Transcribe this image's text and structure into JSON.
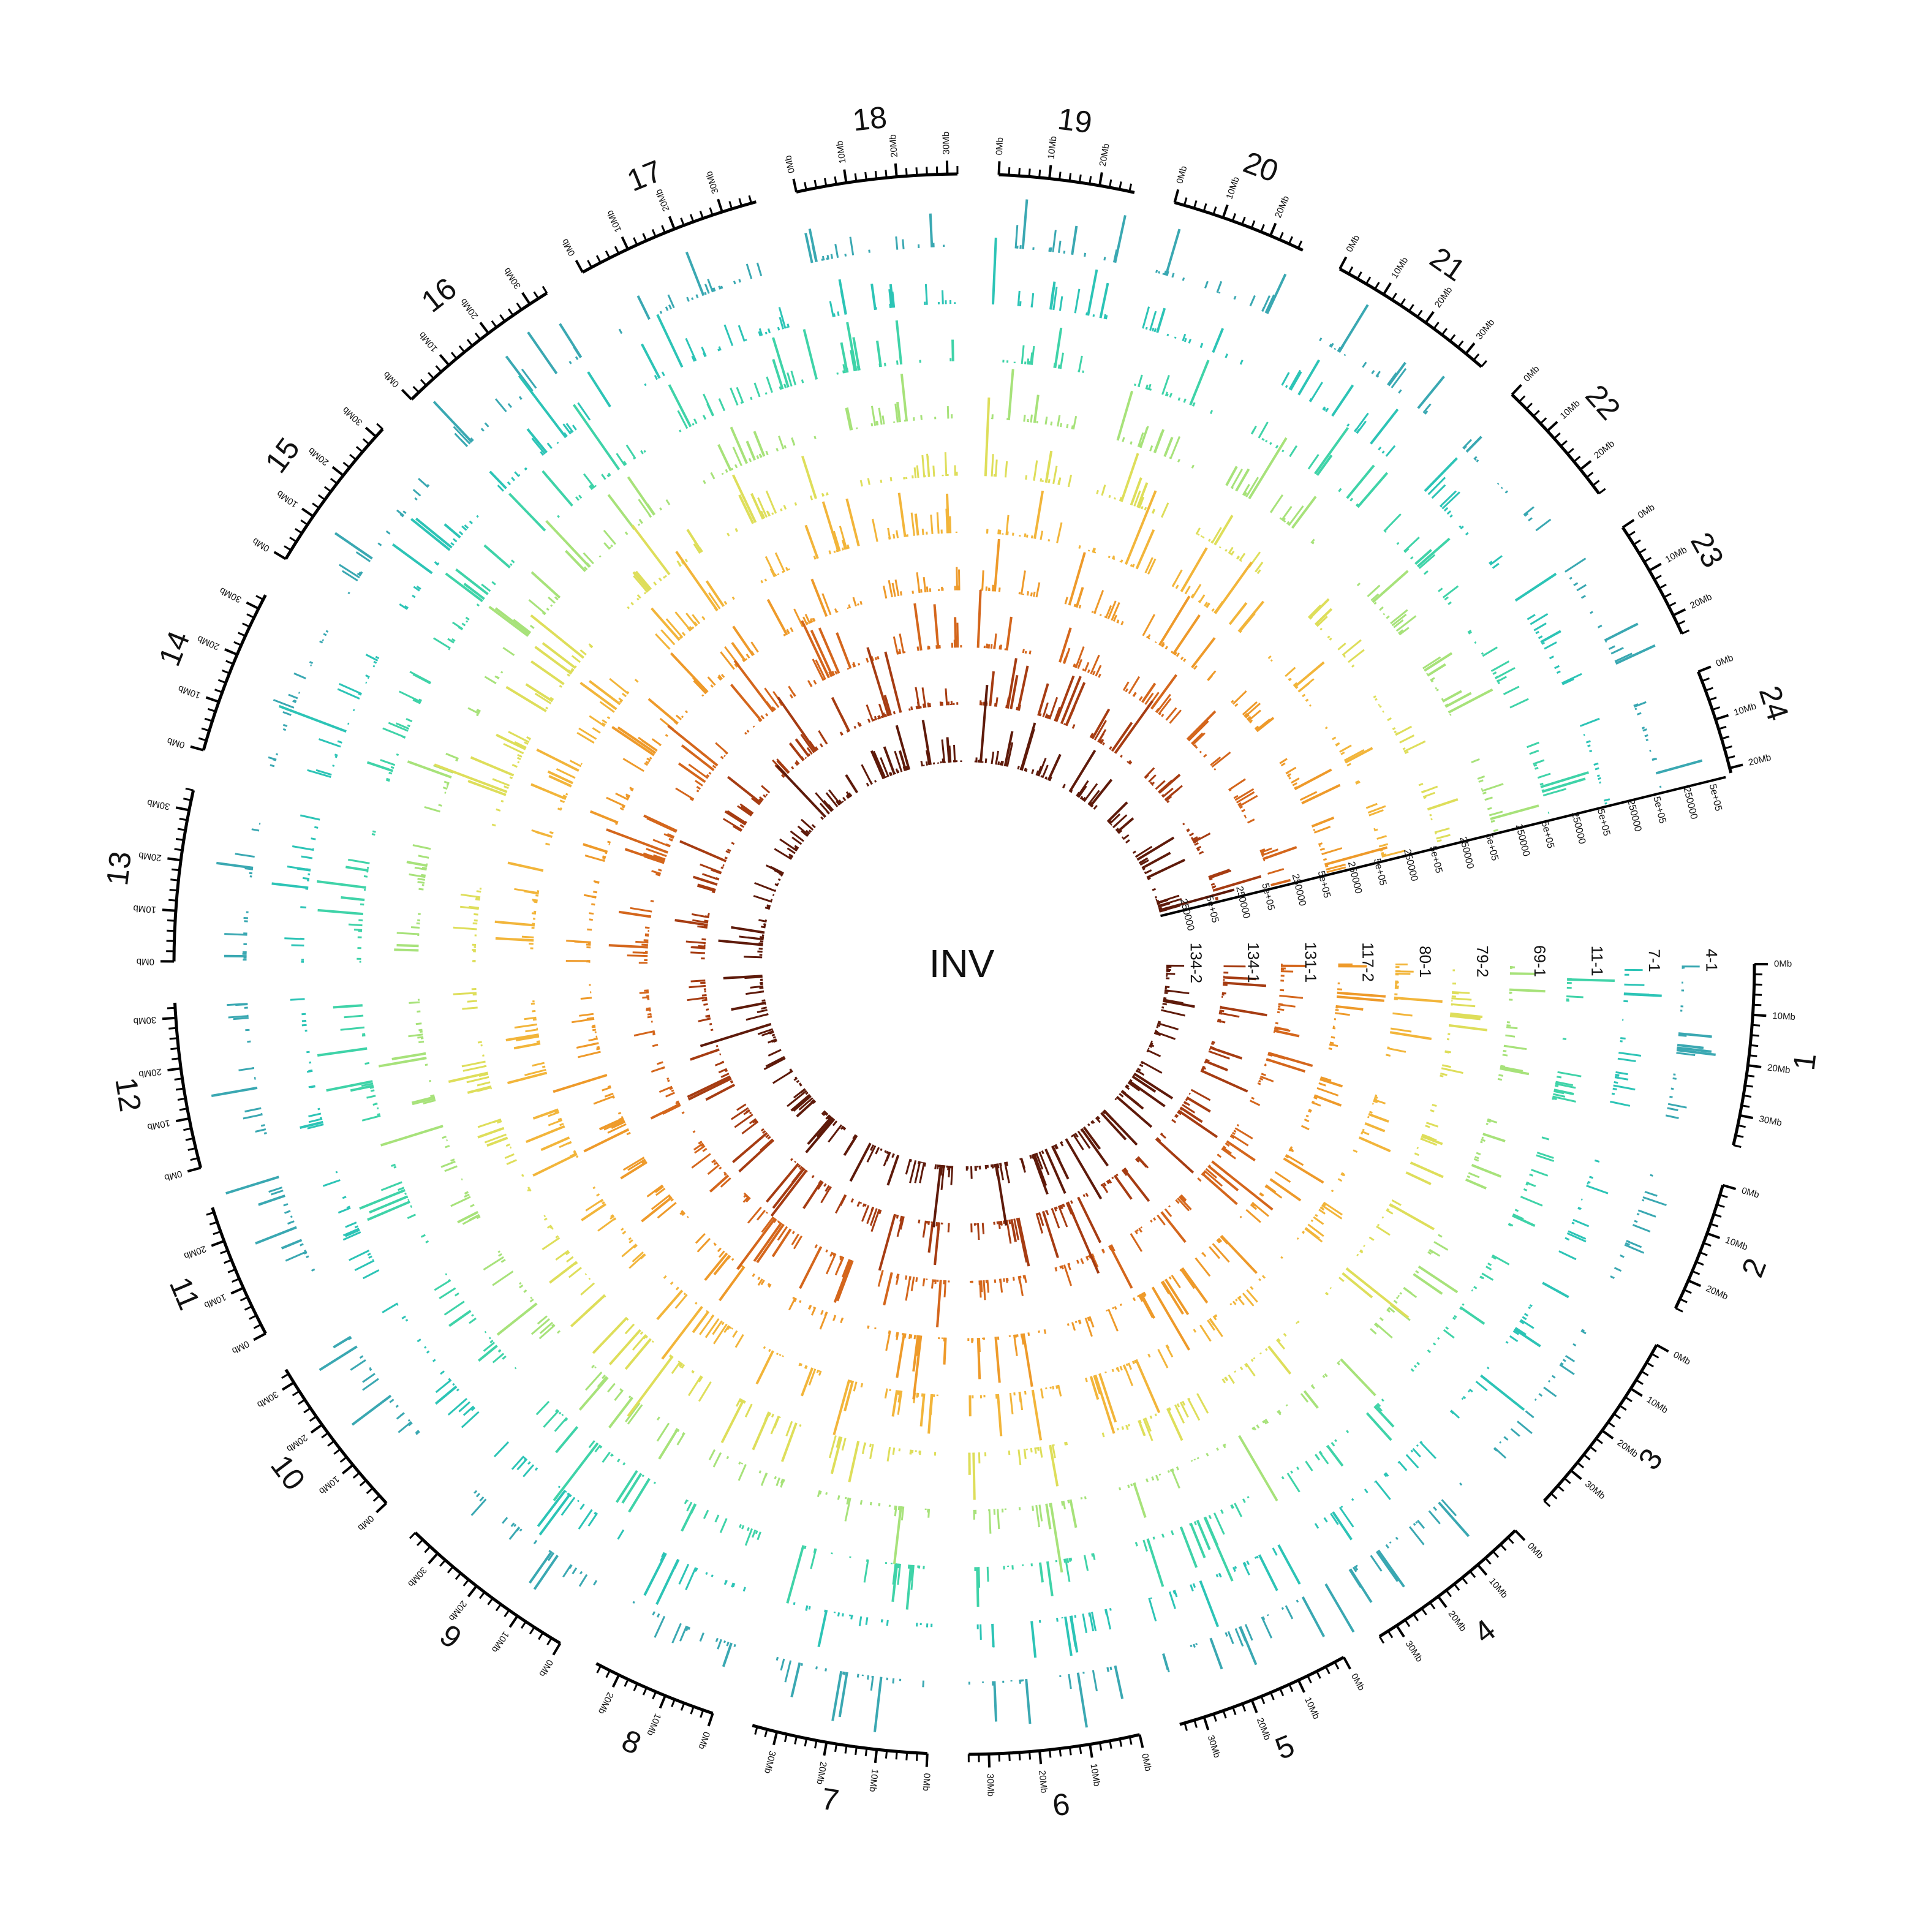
{
  "chart_data": {
    "type": "circos",
    "title": "INV",
    "chromosomes": [
      {
        "name": "1",
        "length_mb": 36,
        "tick_labels": [
          "0Mb",
          "10Mb",
          "20Mb",
          "30Mb"
        ]
      },
      {
        "name": "2",
        "length_mb": 26,
        "tick_labels": [
          "0Mb",
          "10Mb",
          "20Mb"
        ]
      },
      {
        "name": "3",
        "length_mb": 38,
        "tick_labels": [
          "0Mb",
          "10Mb",
          "20Mb",
          "30Mb"
        ]
      },
      {
        "name": "4",
        "length_mb": 34,
        "tick_labels": [
          "0Mb",
          "10Mb",
          "20Mb",
          "30Mb"
        ]
      },
      {
        "name": "5",
        "length_mb": 35,
        "tick_labels": [
          "0Mb",
          "10Mb",
          "20Mb",
          "30Mb"
        ]
      },
      {
        "name": "6",
        "length_mb": 34,
        "tick_labels": [
          "0Mb",
          "10Mb",
          "20Mb",
          "30Mb"
        ]
      },
      {
        "name": "7",
        "length_mb": 35,
        "tick_labels": [
          "0Mb",
          "10Mb",
          "20Mb",
          "30Mb"
        ]
      },
      {
        "name": "8",
        "length_mb": 25,
        "tick_labels": [
          "0Mb",
          "10Mb",
          "20Mb"
        ]
      },
      {
        "name": "9",
        "length_mb": 36,
        "tick_labels": [
          "0Mb",
          "10Mb",
          "20Mb",
          "30Mb"
        ]
      },
      {
        "name": "10",
        "length_mb": 33,
        "tick_labels": [
          "0Mb",
          "10Mb",
          "20Mb",
          "30Mb"
        ]
      },
      {
        "name": "11",
        "length_mb": 27,
        "tick_labels": [
          "0Mb",
          "10Mb",
          "20Mb"
        ]
      },
      {
        "name": "12",
        "length_mb": 33,
        "tick_labels": [
          "0Mb",
          "10Mb",
          "20Mb",
          "30Mb"
        ]
      },
      {
        "name": "13",
        "length_mb": 34,
        "tick_labels": [
          "0Mb",
          "10Mb",
          "20Mb",
          "30Mb"
        ]
      },
      {
        "name": "14",
        "length_mb": 33,
        "tick_labels": [
          "0Mb",
          "10Mb",
          "20Mb",
          "30Mb"
        ]
      },
      {
        "name": "15",
        "length_mb": 32,
        "tick_labels": [
          "0Mb",
          "10Mb",
          "20Mb",
          "30Mb"
        ]
      },
      {
        "name": "16",
        "length_mb": 34,
        "tick_labels": [
          "0Mb",
          "10Mb",
          "20Mb",
          "30Mb"
        ]
      },
      {
        "name": "17",
        "length_mb": 37,
        "tick_labels": [
          "0Mb",
          "10Mb",
          "20Mb",
          "30Mb"
        ]
      },
      {
        "name": "18",
        "length_mb": 32,
        "tick_labels": [
          "0Mb",
          "10Mb",
          "20Mb",
          "30Mb"
        ]
      },
      {
        "name": "19",
        "length_mb": 27,
        "tick_labels": [
          "0Mb",
          "10Mb",
          "20Mb"
        ]
      },
      {
        "name": "20",
        "length_mb": 27,
        "tick_labels": [
          "0Mb",
          "10Mb",
          "20Mb"
        ]
      },
      {
        "name": "21",
        "length_mb": 34,
        "tick_labels": [
          "0Mb",
          "10Mb",
          "20Mb",
          "30Mb"
        ]
      },
      {
        "name": "22",
        "length_mb": 26,
        "tick_labels": [
          "0Mb",
          "10Mb",
          "20Mb"
        ]
      },
      {
        "name": "23",
        "length_mb": 24,
        "tick_labels": [
          "0Mb",
          "10Mb",
          "20Mb"
        ]
      },
      {
        "name": "24",
        "length_mb": 21,
        "tick_labels": [
          "0Mb",
          "10Mb",
          "20Mb"
        ]
      }
    ],
    "series": [
      {
        "name": "4-1",
        "color": "#3aa8b2"
      },
      {
        "name": "7-1",
        "color": "#2cc4b6"
      },
      {
        "name": "11-1",
        "color": "#3fd3a8"
      },
      {
        "name": "69-1",
        "color": "#a7e27a"
      },
      {
        "name": "79-2",
        "color": "#dede5a"
      },
      {
        "name": "80-1",
        "color": "#f2b53a"
      },
      {
        "name": "117-2",
        "color": "#ee9a2a"
      },
      {
        "name": "131-1",
        "color": "#d4661c"
      },
      {
        "name": "134-1",
        "color": "#a63c12"
      },
      {
        "name": "134-2",
        "color": "#5e1a0a"
      }
    ],
    "track_scale_labels": [
      "250000",
      "5e+05"
    ]
  }
}
